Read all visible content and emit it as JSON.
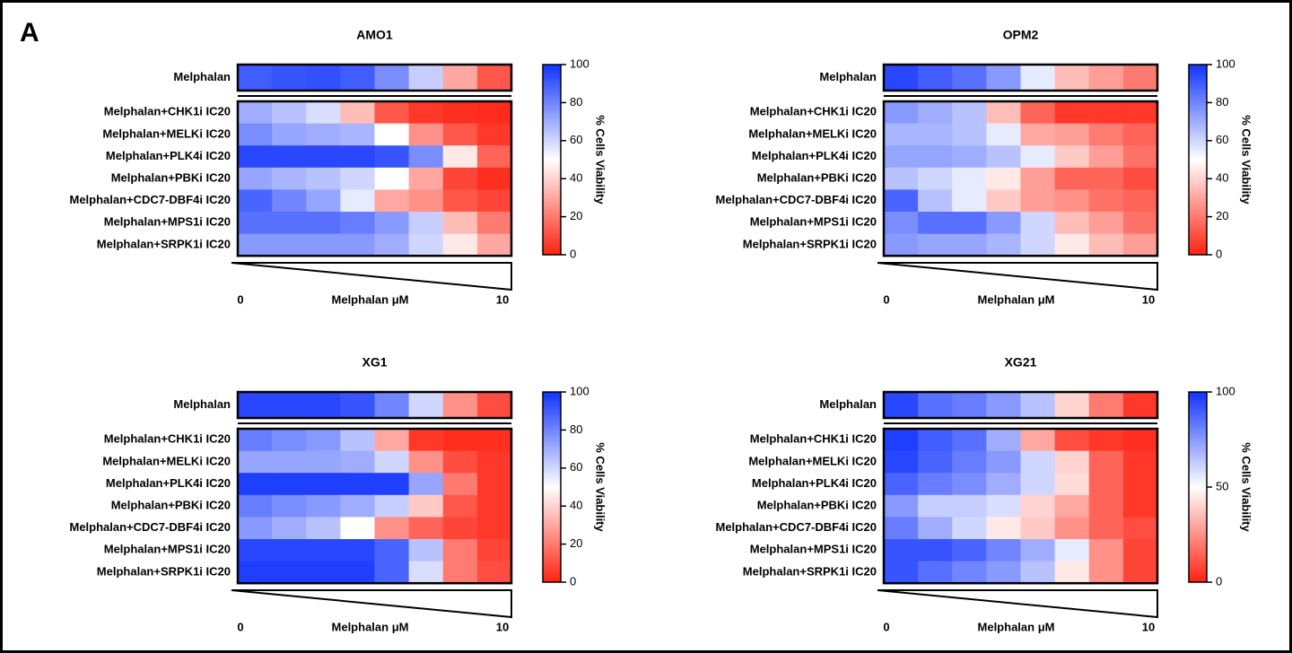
{
  "panel_label": "A",
  "chart_data": [
    {
      "type": "heatmap",
      "title": "AMO1",
      "rows": [
        "Melphalan",
        "Melphalan+CHK1i IC20",
        "Melphalan+MELKi IC20",
        "Melphalan+PLK4i IC20",
        "Melphalan+PBKi IC20",
        "Melphalan+CDC7-DBF4i IC20",
        "Melphalan+MPS1i IC20",
        "Melphalan+SRPK1i IC20"
      ],
      "values": [
        [
          90,
          92,
          93,
          90,
          78,
          62,
          30,
          12
        ],
        [
          70,
          65,
          58,
          35,
          12,
          5,
          3,
          2
        ],
        [
          78,
          72,
          70,
          68,
          50,
          25,
          12,
          5
        ],
        [
          95,
          95,
          95,
          95,
          92,
          78,
          45,
          15
        ],
        [
          72,
          68,
          65,
          60,
          50,
          30,
          8,
          3
        ],
        [
          88,
          80,
          72,
          55,
          30,
          25,
          12,
          8
        ],
        [
          85,
          85,
          85,
          82,
          75,
          62,
          35,
          20
        ],
        [
          75,
          75,
          75,
          75,
          70,
          60,
          45,
          30
        ]
      ],
      "xlabel": "Melphalan μM",
      "xlim": [
        0,
        10
      ],
      "xticks": [
        0,
        10
      ],
      "colorbar_label": "% Cells Viability",
      "clim": [
        0,
        100
      ],
      "colorbar_ticks": [
        0,
        20,
        40,
        60,
        80,
        100
      ],
      "colors": [
        "#ff2211",
        "#ffffff",
        "#1133ff"
      ]
    },
    {
      "type": "heatmap",
      "title": "OPM2",
      "rows": [
        "Melphalan",
        "Melphalan+CHK1i IC20",
        "Melphalan+MELKi IC20",
        "Melphalan+PLK4i IC20",
        "Melphalan+PBKi IC20",
        "Melphalan+CDC7-DBF4i IC20",
        "Melphalan+MPS1i IC20",
        "Melphalan+SRPK1i IC20"
      ],
      "values": [
        [
          95,
          90,
          85,
          75,
          55,
          35,
          28,
          20
        ],
        [
          75,
          70,
          65,
          35,
          15,
          5,
          5,
          5
        ],
        [
          68,
          68,
          65,
          55,
          30,
          28,
          20,
          15
        ],
        [
          72,
          72,
          70,
          65,
          55,
          38,
          28,
          18
        ],
        [
          65,
          60,
          55,
          45,
          28,
          15,
          15,
          10
        ],
        [
          88,
          65,
          55,
          38,
          28,
          25,
          18,
          15
        ],
        [
          78,
          85,
          85,
          75,
          60,
          35,
          28,
          18
        ],
        [
          75,
          72,
          72,
          68,
          60,
          45,
          35,
          28
        ]
      ],
      "xlabel": "Melphalan μM",
      "xlim": [
        0,
        10
      ],
      "xticks": [
        0,
        10
      ],
      "colorbar_label": "% Cells Viability",
      "clim": [
        0,
        100
      ],
      "colorbar_ticks": [
        0,
        20,
        40,
        60,
        80,
        100
      ],
      "colors": [
        "#ff2211",
        "#ffffff",
        "#1133ff"
      ]
    },
    {
      "type": "heatmap",
      "title": "XG1",
      "rows": [
        "Melphalan",
        "Melphalan+CHK1i IC20",
        "Melphalan+MELKi IC20",
        "Melphalan+PLK4i IC20",
        "Melphalan+PBKi IC20",
        "Melphalan+CDC7-DBF4i IC20",
        "Melphalan+MPS1i IC20",
        "Melphalan+SRPK1i IC20"
      ],
      "values": [
        [
          95,
          95,
          95,
          92,
          80,
          60,
          25,
          10
        ],
        [
          82,
          78,
          75,
          65,
          30,
          5,
          3,
          3
        ],
        [
          72,
          72,
          72,
          70,
          60,
          25,
          10,
          5
        ],
        [
          97,
          97,
          97,
          97,
          97,
          72,
          20,
          5
        ],
        [
          82,
          78,
          75,
          70,
          62,
          38,
          12,
          5
        ],
        [
          75,
          70,
          65,
          50,
          25,
          15,
          8,
          5
        ],
        [
          95,
          95,
          95,
          95,
          88,
          65,
          20,
          8
        ],
        [
          97,
          97,
          97,
          97,
          88,
          58,
          20,
          10
        ]
      ],
      "xlabel": "Melphalan μM",
      "xlim": [
        0,
        10
      ],
      "xticks": [
        0,
        10
      ],
      "colorbar_label": "% Cells Viability",
      "clim": [
        0,
        100
      ],
      "colorbar_ticks": [
        0,
        20,
        40,
        60,
        80,
        100
      ],
      "colors": [
        "#ff2211",
        "#ffffff",
        "#1133ff"
      ]
    },
    {
      "type": "heatmap",
      "title": "XG21",
      "rows": [
        "Melphalan",
        "Melphalan+CHK1i IC20",
        "Melphalan+MELKi IC20",
        "Melphalan+PLK4i IC20",
        "Melphalan+PBKi IC20",
        "Melphalan+CDC7-DBF4i IC20",
        "Melphalan+MPS1i IC20",
        "Melphalan+SRPK1i IC20"
      ],
      "values": [
        [
          95,
          85,
          82,
          75,
          65,
          40,
          20,
          5
        ],
        [
          97,
          90,
          85,
          70,
          30,
          10,
          5,
          3
        ],
        [
          95,
          88,
          82,
          75,
          60,
          40,
          15,
          5
        ],
        [
          88,
          82,
          78,
          70,
          60,
          42,
          15,
          5
        ],
        [
          75,
          62,
          62,
          58,
          40,
          30,
          15,
          5
        ],
        [
          82,
          70,
          60,
          45,
          38,
          25,
          15,
          10
        ],
        [
          92,
          92,
          88,
          80,
          70,
          55,
          25,
          8
        ],
        [
          92,
          85,
          80,
          75,
          65,
          45,
          25,
          8
        ]
      ],
      "xlabel": "Melphalan μM",
      "xlim": [
        0,
        10
      ],
      "xticks": [
        0,
        10
      ],
      "colorbar_label": "% Cells Viability",
      "clim": [
        0,
        100
      ],
      "colorbar_ticks": [
        0,
        50,
        100
      ],
      "colors": [
        "#ff2211",
        "#ffffff",
        "#1133ff"
      ]
    }
  ]
}
